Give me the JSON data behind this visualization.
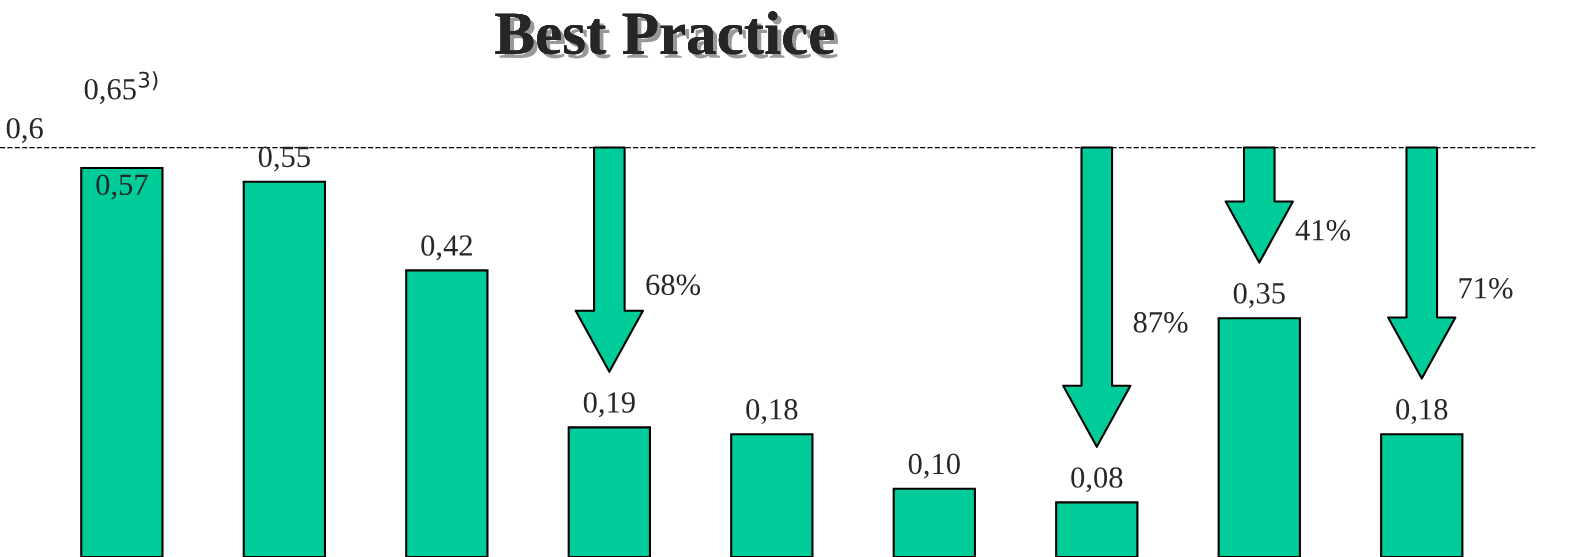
{
  "chart_data": {
    "type": "bar",
    "title": "Best Practice",
    "categories": [
      null,
      null,
      null,
      null,
      null,
      null,
      null,
      null,
      null
    ],
    "values": [
      0.57,
      0.55,
      0.42,
      0.19,
      0.18,
      0.1,
      0.08,
      0.35,
      0.18
    ],
    "value_labels": [
      "0,57",
      "0,55",
      "0,42",
      "0,19",
      "0,18",
      "0,10",
      "0,08",
      "0,35",
      "0,18"
    ],
    "color": "#00cc99",
    "ref_lines": [
      {
        "axis": "y",
        "value": 0.6,
        "label": "0,6",
        "line_style": "dashed",
        "color": "#000000"
      }
    ],
    "annotations": [
      "0,65$^{3)}$",
      "68%",
      "87%",
      "41%",
      "71%"
    ]
  }
}
